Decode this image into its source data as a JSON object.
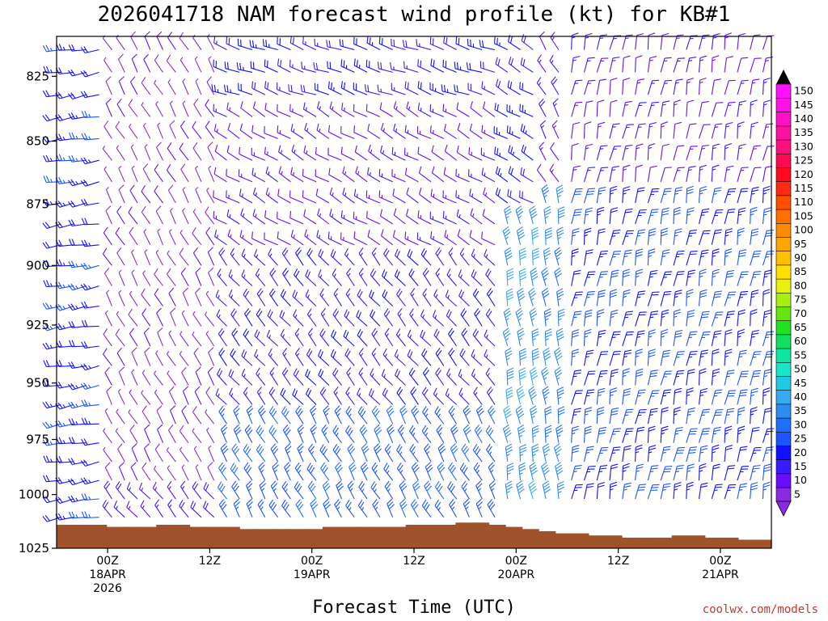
{
  "chart_data": {
    "type": "wind-barb time-height profile",
    "title": "2026041718 NAM forecast wind profile (kt) for KB#1",
    "xlabel": "Forecast Time (UTC)",
    "ylabel": "",
    "credit": "coolwx.com/models",
    "x_ticks": [
      {
        "hour": 6,
        "lines": [
          "00Z",
          "18APR",
          "2026"
        ]
      },
      {
        "hour": 18,
        "lines": [
          "12Z"
        ]
      },
      {
        "hour": 30,
        "lines": [
          "00Z",
          "19APR"
        ]
      },
      {
        "hour": 42,
        "lines": [
          "12Z"
        ]
      },
      {
        "hour": 54,
        "lines": [
          "00Z",
          "20APR"
        ]
      },
      {
        "hour": 66,
        "lines": [
          "12Z"
        ]
      },
      {
        "hour": 78,
        "lines": [
          "00Z",
          "21APR"
        ]
      }
    ],
    "xlim_hours": [
      0,
      84
    ],
    "y_ticks": [
      825,
      850,
      875,
      900,
      925,
      950,
      975,
      1000,
      1025
    ],
    "ylim_hpa": [
      1025,
      810
    ],
    "colorbar_values": [
      5,
      10,
      15,
      20,
      25,
      30,
      35,
      40,
      45,
      50,
      55,
      60,
      65,
      70,
      75,
      80,
      85,
      90,
      95,
      100,
      105,
      110,
      115,
      120,
      125,
      130,
      135,
      140,
      145,
      150
    ],
    "colorbar_colors": [
      "#8a2be2",
      "#6a0dff",
      "#3a1aff",
      "#1010ff",
      "#1a55ff",
      "#1f6fff",
      "#2d8cf0",
      "#37aaf0",
      "#22c8e6",
      "#19e6c8",
      "#10e6a0",
      "#10e060",
      "#22e022",
      "#66e610",
      "#a8ee10",
      "#e8f010",
      "#ffe000",
      "#ffc000",
      "#ffa500",
      "#ff8c00",
      "#ff7000",
      "#ff5000",
      "#ff2a10",
      "#ff0a20",
      "#ff0a50",
      "#ff1080",
      "#ff10a0",
      "#ff10c8",
      "#ff10e8",
      "#ff10ff"
    ],
    "terrain_color": "#a0522d",
    "surface_pressure_hpa": [
      1014,
      1014,
      1014,
      1015,
      1015,
      1015,
      1014,
      1014,
      1015,
      1015,
      1015,
      1016,
      1016,
      1016,
      1016,
      1016,
      1015,
      1015,
      1015,
      1015,
      1015,
      1014,
      1014,
      1014,
      1013,
      1013,
      1014,
      1015,
      1016,
      1017,
      1018,
      1018,
      1019,
      1019,
      1020,
      1020,
      1020,
      1019,
      1019,
      1020,
      1020,
      1021,
      1021
    ],
    "regimes": [
      {
        "hour_from": 0,
        "hour_to": 6,
        "p_from": 810,
        "p_to": 1020,
        "dir": 260,
        "speed": 23
      },
      {
        "hour_from": 6,
        "hour_to": 19,
        "p_from": 810,
        "p_to": 1000,
        "dir": 330,
        "speed": 8
      },
      {
        "hour_from": 6,
        "hour_to": 19,
        "p_from": 1000,
        "p_to": 1020,
        "dir": 320,
        "speed": 17
      },
      {
        "hour_from": 19,
        "hour_to": 52,
        "p_from": 810,
        "p_to": 840,
        "dir": 290,
        "speed": 20
      },
      {
        "hour_from": 19,
        "hour_to": 52,
        "p_from": 840,
        "p_to": 900,
        "dir": 300,
        "speed": 13
      },
      {
        "hour_from": 19,
        "hour_to": 52,
        "p_from": 900,
        "p_to": 960,
        "dir": 320,
        "speed": 18
      },
      {
        "hour_from": 19,
        "hour_to": 52,
        "p_from": 960,
        "p_to": 1020,
        "dir": 330,
        "speed": 28
      },
      {
        "hour_from": 52,
        "hour_to": 57,
        "p_from": 810,
        "p_to": 880,
        "dir": 300,
        "speed": 22
      },
      {
        "hour_from": 52,
        "hour_to": 57,
        "p_from": 880,
        "p_to": 1005,
        "dir": 350,
        "speed": 38
      },
      {
        "hour_from": 57,
        "hour_to": 60,
        "p_from": 810,
        "p_to": 870,
        "dir": 330,
        "speed": 15
      },
      {
        "hour_from": 57,
        "hour_to": 60,
        "p_from": 870,
        "p_to": 1005,
        "dir": 350,
        "speed": 35
      },
      {
        "hour_from": 60,
        "hour_to": 84,
        "p_from": 810,
        "p_to": 870,
        "dir": 10,
        "speed": 14
      },
      {
        "hour_from": 60,
        "hour_to": 84,
        "p_from": 870,
        "p_to": 1010,
        "dir": 10,
        "speed": 25
      }
    ]
  }
}
